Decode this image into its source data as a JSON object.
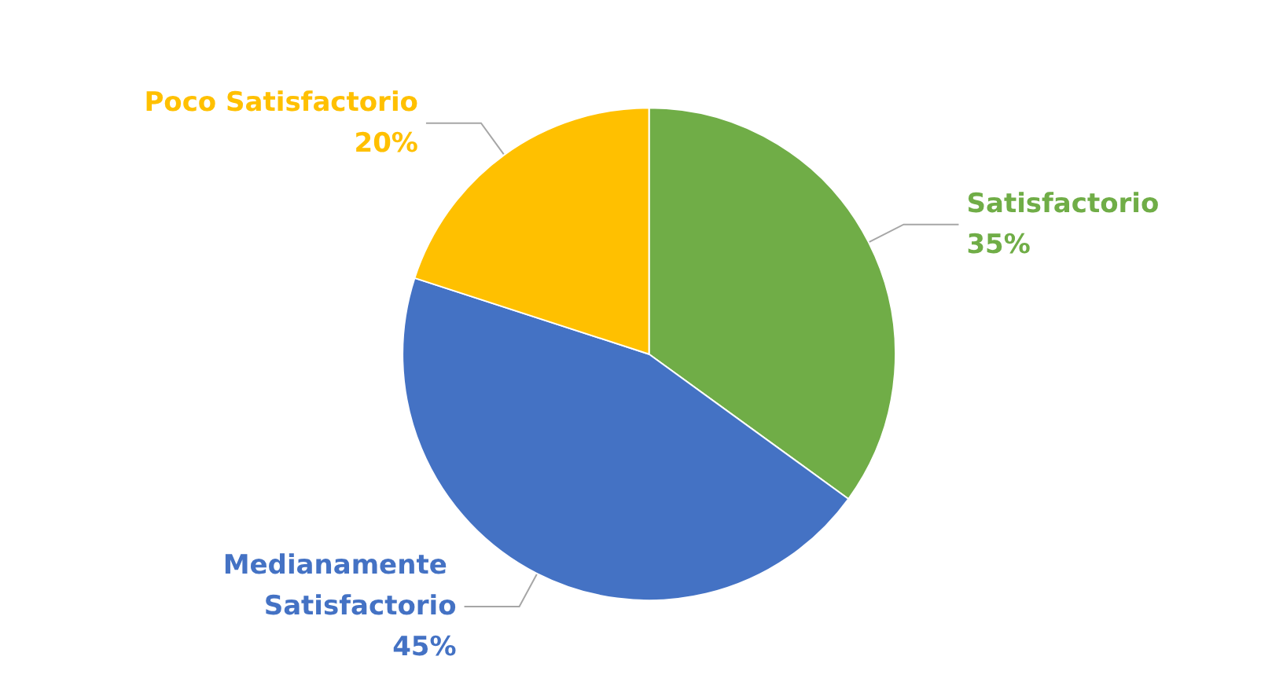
{
  "chart_data": {
    "type": "pie",
    "categories": [
      "Satisfactorio",
      "Medianamente Satisfactorio",
      "Poco Satisfactorio"
    ],
    "values": [
      35,
      45,
      20
    ],
    "colors": [
      "#70ad47",
      "#4472c4",
      "#ffc000"
    ],
    "value_labels": [
      "35%",
      "45%",
      "20%"
    ],
    "legend": false
  }
}
